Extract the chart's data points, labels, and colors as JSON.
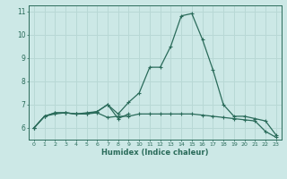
{
  "x": [
    0,
    1,
    2,
    3,
    4,
    5,
    6,
    7,
    8,
    9,
    10,
    11,
    12,
    13,
    14,
    15,
    16,
    17,
    18,
    19,
    20,
    21,
    22,
    23
  ],
  "line1": [
    6.0,
    6.5,
    6.6,
    6.65,
    6.6,
    6.6,
    6.7,
    7.0,
    6.6,
    7.1,
    7.5,
    8.6,
    8.6,
    9.5,
    10.8,
    10.9,
    9.8,
    8.5,
    7.0,
    6.5,
    6.5,
    6.4,
    6.3,
    5.7
  ],
  "line2": [
    6.0,
    6.5,
    6.65,
    6.65,
    6.6,
    6.65,
    6.7,
    7.0,
    6.4,
    6.6,
    null,
    null,
    null,
    null,
    null,
    null,
    null,
    null,
    null,
    null,
    null,
    null,
    null,
    null
  ],
  "line3": [
    6.0,
    6.5,
    6.65,
    6.65,
    6.6,
    6.6,
    6.65,
    6.45,
    6.5,
    6.5,
    6.6,
    6.6,
    6.6,
    6.6,
    6.6,
    6.6,
    6.55,
    6.5,
    6.45,
    6.4,
    6.35,
    6.3,
    5.85,
    5.6
  ],
  "bg_color": "#cce8e6",
  "line_color": "#2a6b5a",
  "grid_color": "#b8d8d5",
  "xlabel": "Humidex (Indice chaleur)",
  "ylim_min": 5.5,
  "ylim_max": 11.25,
  "xlim_min": -0.5,
  "xlim_max": 23.5,
  "yticks": [
    6,
    7,
    8,
    9,
    10,
    11
  ],
  "xticks": [
    0,
    1,
    2,
    3,
    4,
    5,
    6,
    7,
    8,
    9,
    10,
    11,
    12,
    13,
    14,
    15,
    16,
    17,
    18,
    19,
    20,
    21,
    22,
    23
  ],
  "xtick_labels": [
    "0",
    "1",
    "2",
    "3",
    "4",
    "5",
    "6",
    "7",
    "8",
    "9",
    "10",
    "11",
    "12",
    "13",
    "14",
    "15",
    "16",
    "17",
    "18",
    "19",
    "20",
    "21",
    "22",
    "23"
  ]
}
